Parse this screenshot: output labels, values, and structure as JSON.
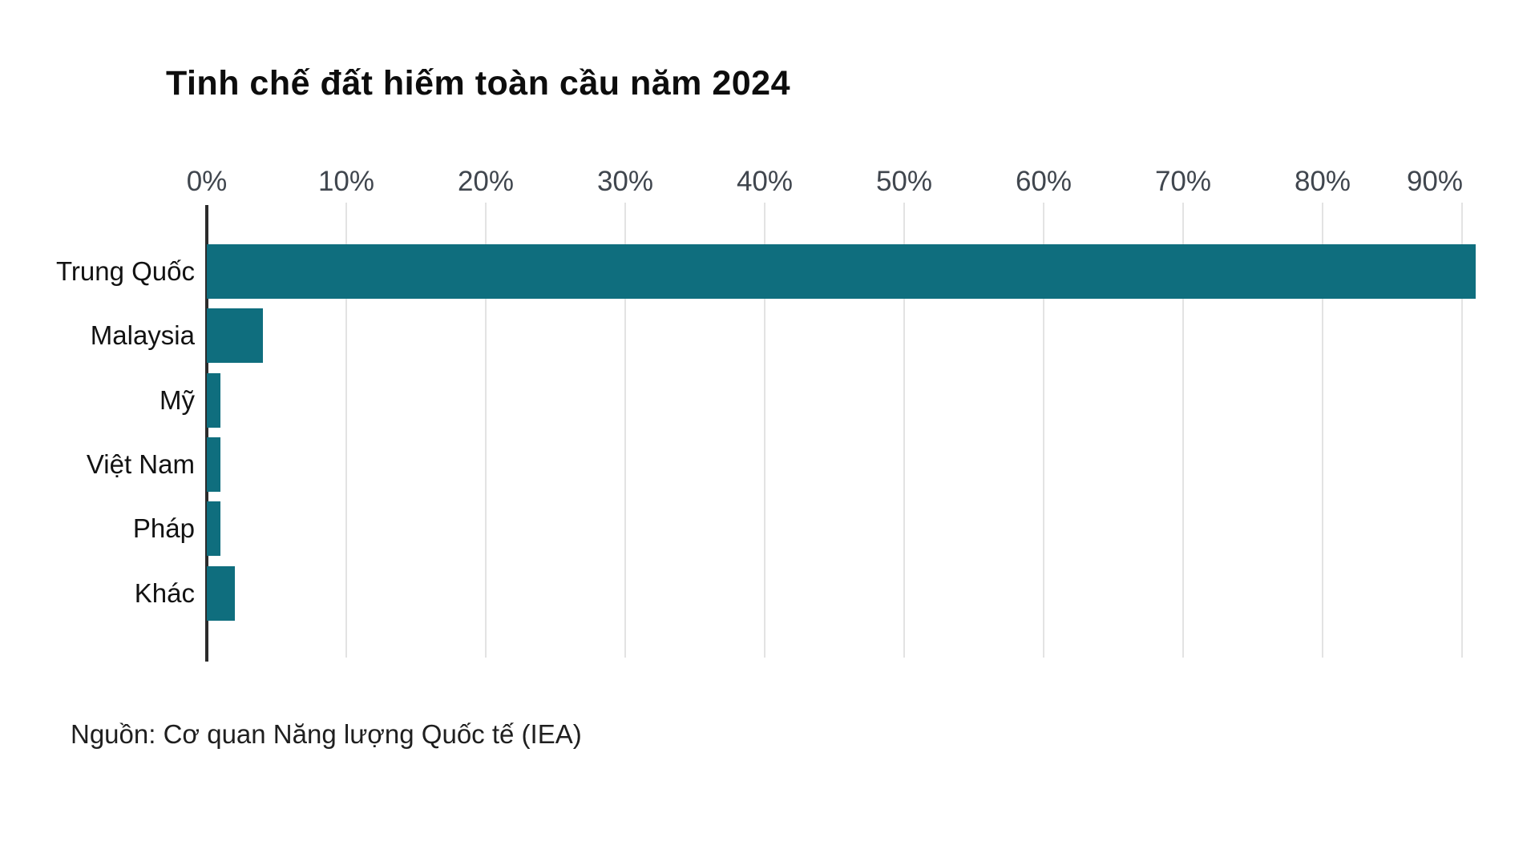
{
  "page": {
    "title": "Tinh chế đất hiếm toàn cầu năm 2024",
    "source": "Nguồn: Cơ quan Năng lượng Quốc tế (IEA)"
  },
  "chart_data": {
    "type": "bar",
    "orientation": "horizontal",
    "title": "Tinh chế đất hiếm toàn cầu năm 2024",
    "source": "Nguồn: Cơ quan Năng lượng Quốc tế (IEA)",
    "categories": [
      "Trung Quốc",
      "Malaysia",
      "Mỹ",
      "Việt Nam",
      "Pháp",
      "Khác"
    ],
    "values": [
      91,
      4,
      1,
      1,
      1,
      2
    ],
    "unit": "%",
    "x_tick_labels": [
      "0%",
      "10%",
      "20%",
      "30%",
      "40%",
      "50%",
      "60%",
      "70%",
      "80%",
      "90%"
    ],
    "x_tick_values": [
      0,
      10,
      20,
      30,
      40,
      50,
      60,
      70,
      80,
      90
    ],
    "xlim": [
      0,
      91
    ],
    "grid": true,
    "legend": "none",
    "colors": {
      "bar": "#0f6e7e",
      "gridline": "#e3e3e3",
      "zero_axis": "#2b2b2b",
      "tick_text": "#40464e",
      "category_text": "#121212",
      "title_text": "#0d0d0d",
      "source_text": "#1f1f1f",
      "background": "#ffffff"
    }
  }
}
